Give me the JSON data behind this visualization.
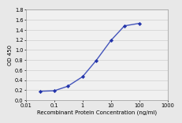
{
  "x": [
    0.031,
    0.1,
    0.3,
    1.0,
    3.0,
    10.0,
    30.0,
    100.0
  ],
  "y": [
    0.18,
    0.19,
    0.28,
    0.47,
    0.79,
    1.19,
    1.48,
    1.53
  ],
  "line_color": "#4455bb",
  "marker_color": "#2233aa",
  "marker_style": "D",
  "marker_size": 2.2,
  "line_width": 1.0,
  "xlabel": "Recombinant Protein Concentration (ng/ml)",
  "ylabel": "OD 450",
  "xlim_log": [
    0.01,
    1000
  ],
  "ylim": [
    0,
    1.8
  ],
  "yticks": [
    0,
    0.2,
    0.4,
    0.6,
    0.8,
    1.0,
    1.2,
    1.4,
    1.6,
    1.8
  ],
  "xticks": [
    0.01,
    0.1,
    1,
    10,
    100,
    1000
  ],
  "xtick_labels": [
    "0.01",
    "0.1",
    "1",
    "10",
    "100",
    "1000"
  ],
  "axis_fontsize": 5.0,
  "tick_fontsize": 4.8,
  "background_color": "#e8e8e8",
  "plot_bg_color": "#f0f0f0",
  "grid_color": "#d0d0d0",
  "spine_color": "#999999"
}
